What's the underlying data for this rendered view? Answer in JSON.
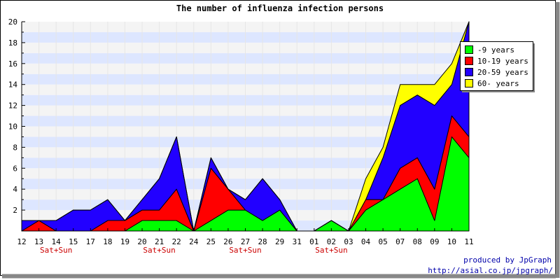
{
  "chart_data": {
    "type": "area",
    "title": "The number of influenza infection persons",
    "xlabel": "",
    "ylabel": "",
    "ylim": [
      0,
      20
    ],
    "yticks": [
      2,
      4,
      6,
      8,
      10,
      12,
      14,
      16,
      18,
      20
    ],
    "stacked": true,
    "grid": true,
    "legend_position": "top-right",
    "x_labels": [
      "12",
      "13",
      "14",
      "15",
      "17",
      "18",
      "19",
      "20",
      "21",
      "22",
      "24",
      "25",
      "26",
      "27",
      "28",
      "29",
      "31",
      "01",
      "02",
      "03",
      "04",
      "05",
      "07",
      "08",
      "09",
      "10",
      "11"
    ],
    "weekend_labels": [
      {
        "text": "Sat+Sun",
        "between": [
          "13",
          "15"
        ]
      },
      {
        "text": "Sat+Sun",
        "between": [
          "20",
          "22"
        ]
      },
      {
        "text": "Sat+Sun",
        "between": [
          "26",
          "28"
        ]
      },
      {
        "text": "Sat+Sun",
        "between": [
          "01",
          "03"
        ]
      }
    ],
    "series": [
      {
        "name": "-9 years",
        "color": "#00ff00",
        "values": [
          0,
          0,
          0,
          0,
          0,
          0,
          0,
          1,
          1,
          1,
          0,
          1,
          2,
          2,
          1,
          2,
          0,
          0,
          1,
          0,
          2,
          3,
          4,
          5,
          1,
          9,
          7
        ]
      },
      {
        "name": "10-19 years",
        "color": "#ff0000",
        "values": [
          0,
          1,
          0,
          0,
          0,
          1,
          1,
          1,
          1,
          3,
          0,
          5,
          2,
          0,
          0,
          0,
          0,
          0,
          0,
          0,
          1,
          0,
          2,
          2,
          3,
          2,
          2
        ]
      },
      {
        "name": "20-59 years",
        "color": "#2200ff",
        "values": [
          1,
          0,
          1,
          2,
          2,
          2,
          0,
          1,
          3,
          5,
          0,
          1,
          0,
          1,
          4,
          1,
          0,
          0,
          0,
          0,
          0,
          4,
          6,
          6,
          8,
          3,
          11
        ]
      },
      {
        "name": "60- years",
        "color": "#ffff00",
        "values": [
          0,
          0,
          0,
          0,
          0,
          0,
          0,
          0,
          0,
          0,
          0,
          0,
          0,
          0,
          0,
          0,
          0,
          0,
          0,
          0,
          2,
          1,
          2,
          1,
          2,
          2,
          0
        ]
      }
    ],
    "colors": {
      "band": "#dde6ff",
      "plot_bg": "#f4f4f4",
      "weekend_text": "#cc0000",
      "credit_text": "#0000aa"
    }
  },
  "credit": {
    "line1": "produced by JpGraph",
    "line2": "http://asial.co.jp/jpgraph/"
  }
}
